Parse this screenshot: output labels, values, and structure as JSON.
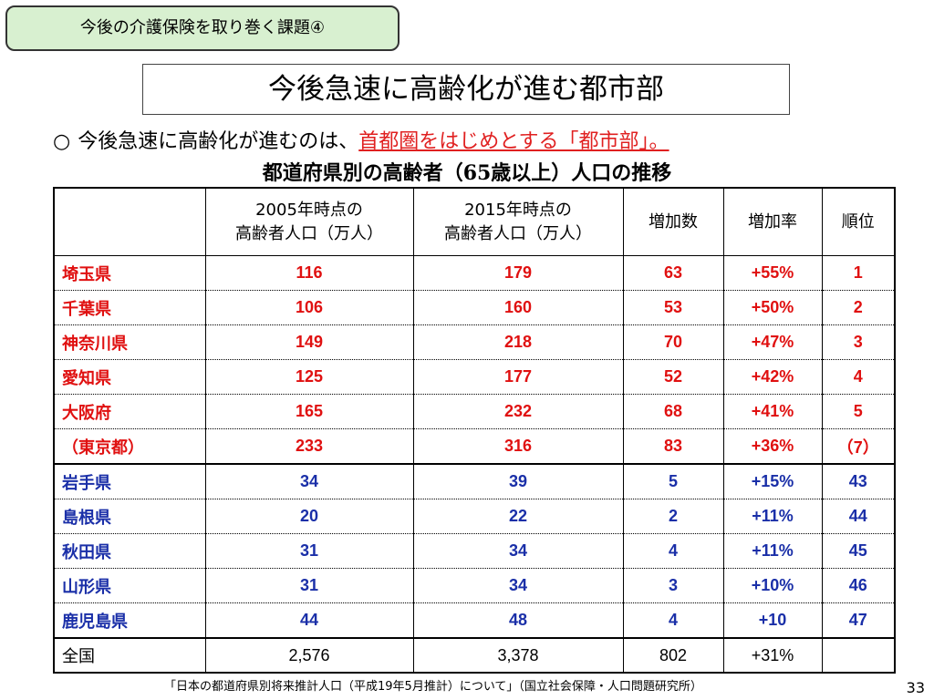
{
  "header": {
    "tag": "今後の介護保険を取り巻く課題④",
    "title": "今後急速に高齢化が進む都市部"
  },
  "headline": {
    "bullet": "○",
    "text": "今後急速に高齢化が進むのは、",
    "highlight": "首都圏をはじめとする「都市部」。"
  },
  "subtitle": "都道府県別の高齢者（65歳以上）人口の推移",
  "table": {
    "columns": [
      "",
      "2005年時点の\n高齢者人口（万人）",
      "2015年時点の\n高齢者人口（万人）",
      "増加数",
      "増加率",
      "順位"
    ],
    "rows": [
      {
        "pref": "埼玉県",
        "y2005": "116",
        "y2015": "179",
        "increase": "63",
        "rate": "+55%",
        "rank": "1",
        "color": "red"
      },
      {
        "pref": "千葉県",
        "y2005": "106",
        "y2015": "160",
        "increase": "53",
        "rate": "+50%",
        "rank": "2",
        "color": "red"
      },
      {
        "pref": "神奈川県",
        "y2005": "149",
        "y2015": "218",
        "increase": "70",
        "rate": "+47%",
        "rank": "3",
        "color": "red"
      },
      {
        "pref": "愛知県",
        "y2005": "125",
        "y2015": "177",
        "increase": "52",
        "rate": "+42%",
        "rank": "4",
        "color": "red"
      },
      {
        "pref": "大阪府",
        "y2005": "165",
        "y2015": "232",
        "increase": "68",
        "rate": "+41%",
        "rank": "5",
        "color": "red"
      },
      {
        "pref": "（東京都）",
        "y2005": "233",
        "y2015": "316",
        "increase": "83",
        "rate": "+36%",
        "rank": "（7）",
        "color": "red"
      },
      {
        "pref": "岩手県",
        "y2005": "34",
        "y2015": "39",
        "increase": "5",
        "rate": "+15%",
        "rank": "43",
        "color": "blue"
      },
      {
        "pref": "島根県",
        "y2005": "20",
        "y2015": "22",
        "increase": "2",
        "rate": "+11%",
        "rank": "44",
        "color": "blue"
      },
      {
        "pref": "秋田県",
        "y2005": "31",
        "y2015": "34",
        "increase": "4",
        "rate": "+11%",
        "rank": "45",
        "color": "blue"
      },
      {
        "pref": "山形県",
        "y2005": "31",
        "y2015": "34",
        "increase": "3",
        "rate": "+10%",
        "rank": "46",
        "color": "blue"
      },
      {
        "pref": "鹿児島県",
        "y2005": "44",
        "y2015": "48",
        "increase": "4",
        "rate": "+10",
        "rank": "47",
        "color": "blue"
      }
    ],
    "total": {
      "pref": "全国",
      "y2005": "2,576",
      "y2015": "3,378",
      "increase": "802",
      "rate": "+31%",
      "rank": ""
    }
  },
  "footer": {
    "source": "「日本の都道府県別将来推計人口（平成19年5月推計）について」（国立社会保障・人口問題研究所）",
    "page": "33"
  },
  "colors": {
    "tag_bg": "#d8f0d0",
    "highlight_red": "#e02020",
    "row_red": "#e01010",
    "row_blue": "#1a2fa8"
  }
}
